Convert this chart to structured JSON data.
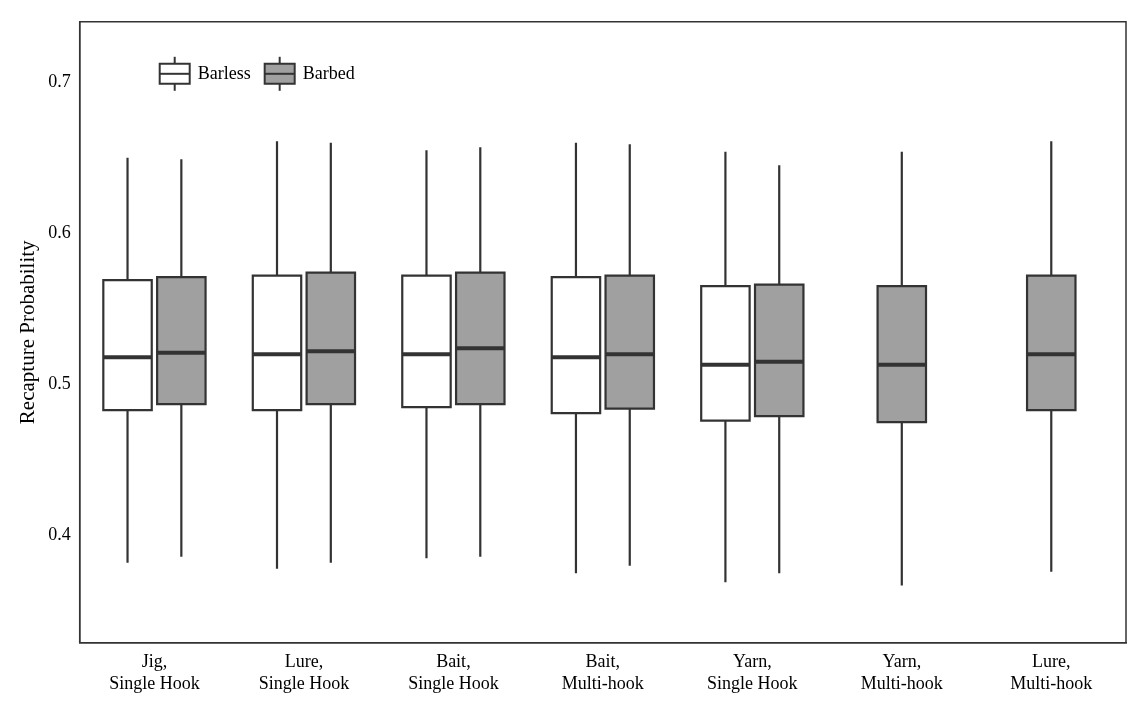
{
  "chart_data": {
    "type": "box",
    "ylabel": "Recapture Probability",
    "categories": [
      "Jig,\nSingle Hook",
      "Lure,\nSingle Hook",
      "Bait,\nSingle Hook",
      "Bait,\nMulti-hook",
      "Yarn,\nSingle Hook",
      "Yarn,\nMulti-hook",
      "Lure,\nMulti-hook"
    ],
    "ylim": [
      0.329,
      0.74
    ],
    "yticks": [
      0.4,
      0.5,
      0.6,
      0.7
    ],
    "grid": false,
    "legend": "top left",
    "series": [
      {
        "name": "Barless",
        "color": "#ffffff",
        "boxes": [
          {
            "low": 0.382,
            "q1": 0.483,
            "median": 0.518,
            "q3": 0.569,
            "high": 0.65
          },
          {
            "low": 0.378,
            "q1": 0.483,
            "median": 0.52,
            "q3": 0.572,
            "high": 0.661
          },
          {
            "low": 0.385,
            "q1": 0.485,
            "median": 0.52,
            "q3": 0.572,
            "high": 0.655
          },
          {
            "low": 0.375,
            "q1": 0.481,
            "median": 0.518,
            "q3": 0.571,
            "high": 0.66
          },
          {
            "low": 0.369,
            "q1": 0.476,
            "median": 0.513,
            "q3": 0.565,
            "high": 0.654
          },
          null,
          null
        ]
      },
      {
        "name": "Barbed",
        "color": "#a0a0a0",
        "boxes": [
          {
            "low": 0.386,
            "q1": 0.487,
            "median": 0.521,
            "q3": 0.571,
            "high": 0.649
          },
          {
            "low": 0.382,
            "q1": 0.487,
            "median": 0.522,
            "q3": 0.574,
            "high": 0.66
          },
          {
            "low": 0.386,
            "q1": 0.487,
            "median": 0.524,
            "q3": 0.574,
            "high": 0.657
          },
          {
            "low": 0.38,
            "q1": 0.484,
            "median": 0.52,
            "q3": 0.572,
            "high": 0.659
          },
          {
            "low": 0.375,
            "q1": 0.479,
            "median": 0.515,
            "q3": 0.566,
            "high": 0.645
          },
          {
            "low": 0.367,
            "q1": 0.475,
            "median": 0.513,
            "q3": 0.565,
            "high": 0.654
          },
          {
            "low": 0.376,
            "q1": 0.483,
            "median": 0.52,
            "q3": 0.572,
            "high": 0.661
          }
        ]
      }
    ]
  }
}
